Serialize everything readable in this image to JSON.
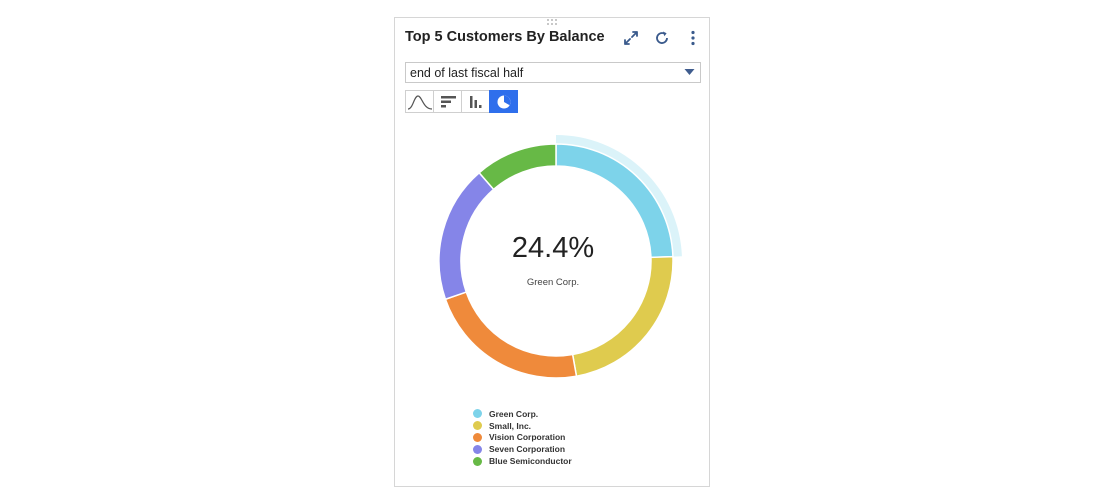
{
  "widget": {
    "title": "Top 5 Customers By Balance",
    "period_select": {
      "value": "end of last fiscal half"
    },
    "header_icons": [
      "expand-icon",
      "refresh-icon",
      "more-vert-icon"
    ],
    "chart_types": [
      {
        "icon": "line-chart-icon",
        "active": false
      },
      {
        "icon": "horizontal-bar-icon",
        "active": false
      },
      {
        "icon": "column-chart-icon",
        "active": false
      },
      {
        "icon": "donut-chart-icon",
        "active": true
      }
    ],
    "accent_color": "#2f6fec"
  },
  "chart_data": {
    "type": "pie",
    "donut": true,
    "categories": [
      "Green Corp.",
      "Small, Inc.",
      "Vision Corporation",
      "Seven Corporation",
      "Blue Semiconductor"
    ],
    "values": [
      24.4,
      22.8,
      22.5,
      18.9,
      11.4
    ],
    "colors": [
      "#7dd3ea",
      "#dfcb4e",
      "#ef8a3b",
      "#8585e8",
      "#67b946"
    ],
    "highlight": {
      "index": 0,
      "value_label": "24.4%",
      "name": "Green Corp."
    },
    "legend": {
      "placement": "bottom"
    }
  }
}
